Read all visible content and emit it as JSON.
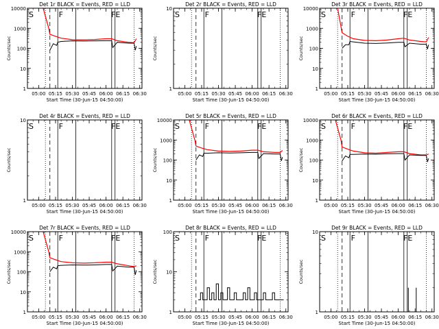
{
  "figure": {
    "ylabel": "Counts/sec",
    "xlabel": "Start Time (30-Jun-15 04:50:00)",
    "x_ticks": [
      "05:00",
      "05:15",
      "05:30",
      "05:45",
      "06:00",
      "06:15",
      "06:30"
    ],
    "region_labels": {
      "s": "S",
      "f": "F",
      "fe": "FE"
    },
    "colors": {
      "events": "#000000",
      "lld": "#ff0000",
      "background": "#ffffff"
    }
  },
  "chart_data": [
    {
      "type": "line",
      "title": "Det 1r BLACK = Events, RED = LLD",
      "ylim": [
        1,
        10000
      ],
      "yscale": "log",
      "y_ticks": [
        "1",
        "10",
        "100",
        "1000",
        "10000"
      ],
      "xlim": [
        "04:50",
        "06:32"
      ],
      "region_times": {
        "s": "04:50",
        "f": "05:16",
        "fe": "06:07"
      },
      "dotted_times": [
        "05:06",
        "06:25"
      ],
      "dashed_times": [
        "05:10"
      ],
      "solid_times": [
        "05:17",
        "05:33",
        "06:05",
        "06:08"
      ],
      "series": [
        {
          "name": "LLD",
          "color": "#ff0000",
          "x": [
            "05:04",
            "05:09",
            "05:10",
            "05:15",
            "05:20",
            "05:30",
            "05:40",
            "05:50",
            "06:00",
            "06:05",
            "06:10",
            "06:20",
            "06:25",
            "06:27"
          ],
          "values": [
            10000,
            1000,
            500,
            400,
            320,
            270,
            265,
            275,
            300,
            300,
            240,
            200,
            190,
            300
          ]
        },
        {
          "name": "Events",
          "color": "#000000",
          "x": [
            "05:10",
            "05:13",
            "05:16",
            "05:17",
            "05:20",
            "05:30",
            "05:40",
            "05:50",
            "06:00",
            "06:05",
            "06:06",
            "06:10",
            "06:20",
            "06:25",
            "06:26",
            "06:27"
          ],
          "values": [
            80,
            170,
            140,
            200,
            220,
            235,
            230,
            235,
            240,
            240,
            110,
            200,
            180,
            180,
            80,
            130
          ]
        }
      ]
    },
    {
      "type": "line",
      "title": "Det 2r BLACK = Events, RED = LLD",
      "ylim": [
        1,
        10
      ],
      "yscale": "log",
      "y_ticks": [
        "1",
        "10"
      ],
      "xlim": [
        "04:50",
        "06:32"
      ],
      "region_times": {
        "s": "04:50",
        "f": "05:16",
        "fe": "06:07"
      },
      "dotted_times": [
        "05:06",
        "06:25"
      ],
      "dashed_times": [
        "05:10"
      ],
      "solid_times": [
        "05:17",
        "05:33",
        "06:05",
        "06:08"
      ],
      "series": []
    },
    {
      "type": "line",
      "title": "Det 3r BLACK = Events, RED = LLD",
      "ylim": [
        1,
        10000
      ],
      "yscale": "log",
      "y_ticks": [
        "1",
        "10",
        "100",
        "1000",
        "10000"
      ],
      "xlim": [
        "04:50",
        "06:32"
      ],
      "region_times": {
        "s": "04:50",
        "f": "05:16",
        "fe": "06:07"
      },
      "dotted_times": [
        "05:06",
        "06:25"
      ],
      "dashed_times": [
        "05:10"
      ],
      "solid_times": [
        "05:17",
        "05:33",
        "06:05",
        "06:08"
      ],
      "series": [
        {
          "name": "LLD",
          "color": "#ff0000",
          "x": [
            "05:06",
            "05:10",
            "05:15",
            "05:20",
            "05:30",
            "05:40",
            "05:50",
            "06:00",
            "06:05",
            "06:10",
            "06:20",
            "06:25",
            "06:27"
          ],
          "values": [
            10000,
            600,
            400,
            300,
            250,
            240,
            260,
            300,
            320,
            260,
            220,
            210,
            350
          ]
        },
        {
          "name": "Events",
          "color": "#000000",
          "x": [
            "05:10",
            "05:13",
            "05:16",
            "05:17",
            "05:20",
            "05:30",
            "05:40",
            "05:50",
            "06:00",
            "06:05",
            "06:06",
            "06:10",
            "06:20",
            "06:25",
            "06:26",
            "06:27"
          ],
          "values": [
            100,
            150,
            150,
            220,
            210,
            180,
            175,
            185,
            200,
            200,
            120,
            180,
            160,
            160,
            90,
            150
          ]
        }
      ]
    },
    {
      "type": "line",
      "title": "Det 4r BLACK = Events, RED = LLD",
      "ylim": [
        1,
        10
      ],
      "yscale": "log",
      "y_ticks": [
        "1",
        "10"
      ],
      "xlim": [
        "04:50",
        "06:32"
      ],
      "region_times": {
        "s": "04:50",
        "f": "05:16",
        "fe": "06:07"
      },
      "dotted_times": [
        "05:06",
        "06:25"
      ],
      "dashed_times": [
        "05:10"
      ],
      "solid_times": [
        "05:17",
        "05:33",
        "06:05",
        "06:08"
      ],
      "series": []
    },
    {
      "type": "line",
      "title": "Det 5r BLACK = Events, RED = LLD",
      "ylim": [
        1,
        10000
      ],
      "yscale": "log",
      "y_ticks": [
        "1",
        "10",
        "100",
        "1000",
        "10000"
      ],
      "xlim": [
        "04:50",
        "06:32"
      ],
      "region_times": {
        "s": "04:50",
        "f": "05:16",
        "fe": "06:07"
      },
      "dotted_times": [
        "05:06",
        "06:25"
      ],
      "dashed_times": [
        "05:10"
      ],
      "solid_times": [
        "05:17",
        "05:33",
        "06:05",
        "06:08"
      ],
      "series": [
        {
          "name": "LLD",
          "color": "#ff0000",
          "x": [
            "05:04",
            "05:09",
            "05:10",
            "05:15",
            "05:20",
            "05:30",
            "05:40",
            "05:50",
            "06:00",
            "06:05",
            "06:10",
            "06:20",
            "06:25",
            "06:27"
          ],
          "values": [
            10000,
            1000,
            500,
            400,
            330,
            280,
            270,
            280,
            310,
            310,
            260,
            240,
            240,
            300
          ]
        },
        {
          "name": "Events",
          "color": "#000000",
          "x": [
            "05:10",
            "05:13",
            "05:16",
            "05:17",
            "05:20",
            "05:30",
            "05:40",
            "05:50",
            "06:00",
            "06:05",
            "06:06",
            "06:10",
            "06:20",
            "06:25",
            "06:26",
            "06:27"
          ],
          "values": [
            100,
            180,
            150,
            220,
            220,
            230,
            225,
            230,
            240,
            240,
            120,
            210,
            200,
            200,
            90,
            140
          ]
        }
      ]
    },
    {
      "type": "line",
      "title": "Det 6r BLACK = Events, RED = LLD",
      "ylim": [
        1,
        10000
      ],
      "yscale": "log",
      "y_ticks": [
        "1",
        "10",
        "100",
        "1000",
        "10000"
      ],
      "xlim": [
        "04:50",
        "06:32"
      ],
      "region_times": {
        "s": "04:50",
        "f": "05:16",
        "fe": "06:07"
      },
      "dotted_times": [
        "05:06",
        "06:25"
      ],
      "dashed_times": [
        "05:10"
      ],
      "solid_times": [
        "05:17",
        "05:33",
        "06:05",
        "06:08"
      ],
      "series": [
        {
          "name": "LLD",
          "color": "#ff0000",
          "x": [
            "05:04",
            "05:09",
            "05:10",
            "05:15",
            "05:20",
            "05:30",
            "05:40",
            "05:50",
            "06:00",
            "06:05",
            "06:10",
            "06:20",
            "06:25",
            "06:27"
          ],
          "values": [
            10000,
            1000,
            450,
            350,
            280,
            230,
            220,
            240,
            260,
            260,
            210,
            180,
            180,
            200
          ]
        },
        {
          "name": "Events",
          "color": "#000000",
          "x": [
            "05:10",
            "05:13",
            "05:16",
            "05:17",
            "05:20",
            "05:30",
            "05:40",
            "05:50",
            "06:00",
            "06:05",
            "06:06",
            "06:10",
            "06:20",
            "06:25",
            "06:26",
            "06:27"
          ],
          "values": [
            90,
            160,
            130,
            190,
            190,
            200,
            195,
            205,
            210,
            210,
            100,
            180,
            170,
            170,
            80,
            120
          ]
        }
      ]
    },
    {
      "type": "line",
      "title": "Det 7r BLACK = Events, RED = LLD",
      "ylim": [
        1,
        10000
      ],
      "yscale": "log",
      "y_ticks": [
        "1",
        "10",
        "100",
        "1000",
        "10000"
      ],
      "xlim": [
        "04:50",
        "06:32"
      ],
      "region_times": {
        "s": "04:50",
        "f": "05:16",
        "fe": "06:07"
      },
      "dotted_times": [
        "05:06",
        "06:25"
      ],
      "dashed_times": [
        "05:10"
      ],
      "solid_times": [
        "05:17",
        "05:33",
        "06:05",
        "06:08"
      ],
      "series": [
        {
          "name": "LLD",
          "color": "#ff0000",
          "x": [
            "05:04",
            "05:09",
            "05:10",
            "05:15",
            "05:20",
            "05:30",
            "05:40",
            "05:50",
            "06:00",
            "06:05",
            "06:10",
            "06:20",
            "06:25",
            "06:27"
          ],
          "values": [
            10000,
            1000,
            500,
            400,
            320,
            280,
            270,
            280,
            300,
            300,
            250,
            200,
            180,
            200
          ]
        },
        {
          "name": "Events",
          "color": "#000000",
          "x": [
            "05:10",
            "05:13",
            "05:16",
            "05:17",
            "05:20",
            "05:30",
            "05:40",
            "05:50",
            "06:00",
            "06:05",
            "06:06",
            "06:10",
            "06:20",
            "06:25",
            "06:26",
            "06:27"
          ],
          "values": [
            100,
            170,
            140,
            200,
            210,
            220,
            215,
            220,
            230,
            230,
            110,
            190,
            170,
            170,
            70,
            120
          ]
        }
      ]
    },
    {
      "type": "line",
      "title": "Det 8r BLACK = Events, RED = LLD",
      "ylim": [
        1,
        100
      ],
      "yscale": "log",
      "y_ticks": [
        "1",
        "10",
        "100"
      ],
      "xlim": [
        "04:50",
        "06:32"
      ],
      "region_times": {
        "s": "04:50",
        "f": "05:16",
        "fe": "06:07"
      },
      "dotted_times": [
        "05:06",
        "06:25"
      ],
      "dashed_times": [
        "05:10"
      ],
      "solid_times": [
        "05:17",
        "05:33",
        "06:05",
        "06:08"
      ],
      "series": [
        {
          "name": "Events",
          "color": "#000000",
          "x": [
            "05:12",
            "05:14",
            "05:16",
            "05:18",
            "05:20",
            "05:22",
            "05:24",
            "05:26",
            "05:28",
            "05:30",
            "05:32",
            "05:34",
            "05:36",
            "05:38",
            "05:40",
            "05:42",
            "05:44",
            "05:46",
            "05:48",
            "05:50",
            "05:52",
            "05:54",
            "05:56",
            "05:58",
            "06:00",
            "06:02",
            "06:04",
            "06:06",
            "06:08",
            "06:10",
            "06:12",
            "06:14",
            "06:16",
            "06:18",
            "06:20",
            "06:22",
            "06:24",
            "06:26",
            "06:28"
          ],
          "values": [
            2,
            3,
            2,
            2,
            4,
            2,
            3,
            2,
            5,
            2,
            3,
            2,
            2,
            4,
            2,
            2,
            3,
            2,
            2,
            2,
            3,
            2,
            4,
            2,
            2,
            3,
            2,
            2,
            2,
            3,
            2,
            2,
            2,
            3,
            2,
            2,
            2,
            2,
            2
          ]
        }
      ]
    },
    {
      "type": "line",
      "title": "Det 9r BLACK = Events, RED = LLD",
      "ylim": [
        1,
        10
      ],
      "yscale": "log",
      "y_ticks": [
        "1",
        "10"
      ],
      "xlim": [
        "04:50",
        "06:32"
      ],
      "region_times": {
        "s": "04:50",
        "f": "05:16",
        "fe": "06:07"
      },
      "dotted_times": [
        "05:06",
        "06:25"
      ],
      "dashed_times": [
        "05:10"
      ],
      "solid_times": [
        "05:17",
        "05:33",
        "06:05",
        "06:08"
      ],
      "series": [
        {
          "name": "Events",
          "color": "#000000",
          "x": [
            "06:09",
            "06:09",
            "06:09",
            "06:16",
            "06:16",
            "06:16"
          ],
          "values": [
            1,
            2,
            1,
            1,
            2,
            1
          ]
        }
      ]
    }
  ]
}
